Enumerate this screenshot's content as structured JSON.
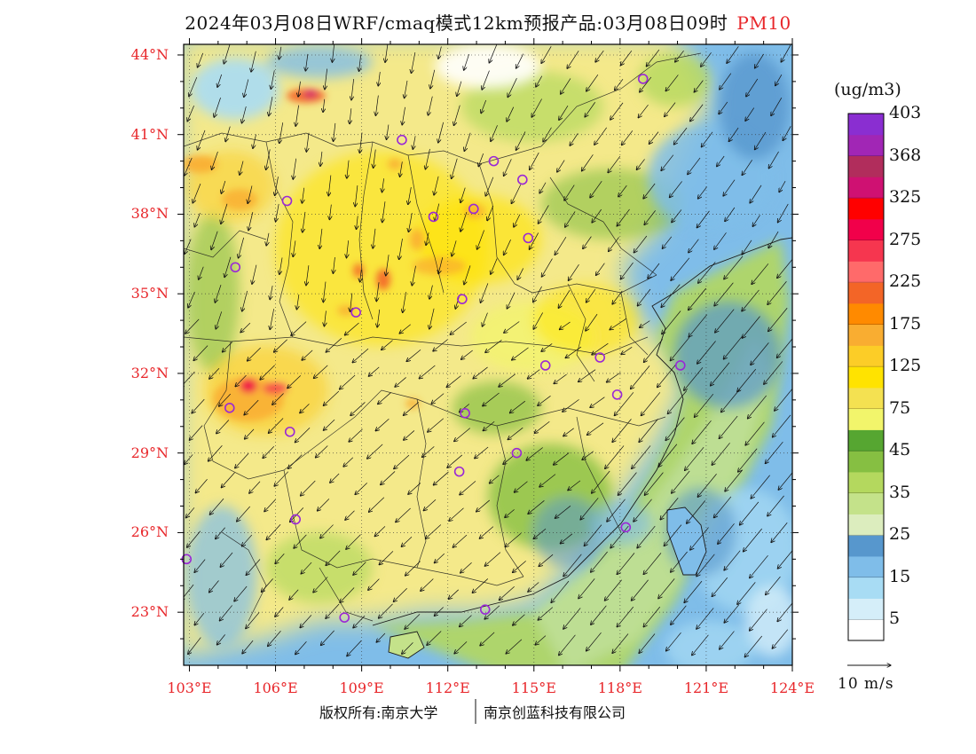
{
  "header": {
    "title": "2024年03月08日WRF/cmaq模式12km预报产品:03月08日09时",
    "pollutant": "PM10"
  },
  "map": {
    "lat_labels": [
      "44°N",
      "41°N",
      "38°N",
      "35°N",
      "32°N",
      "29°N",
      "26°N",
      "23°N"
    ],
    "lat_values": [
      44,
      41,
      38,
      35,
      32,
      29,
      26,
      23
    ],
    "lon_labels": [
      "103°E",
      "106°E",
      "109°E",
      "112°E",
      "115°E",
      "118°E",
      "121°E",
      "124°E"
    ],
    "lon_values": [
      103,
      106,
      109,
      112,
      115,
      118,
      121,
      124
    ],
    "lon_range": [
      102.8,
      124.0
    ],
    "lat_range": [
      21.0,
      44.4
    ],
    "city_markers": [
      [
        118.8,
        43.1
      ],
      [
        110.4,
        40.8
      ],
      [
        113.6,
        40.0
      ],
      [
        114.6,
        39.3
      ],
      [
        106.4,
        38.5
      ],
      [
        111.5,
        37.9
      ],
      [
        112.9,
        38.2
      ],
      [
        114.8,
        37.1
      ],
      [
        104.6,
        36.0
      ],
      [
        108.8,
        34.3
      ],
      [
        112.5,
        34.8
      ],
      [
        117.3,
        32.6
      ],
      [
        115.4,
        32.3
      ],
      [
        120.1,
        32.3
      ],
      [
        104.4,
        30.7
      ],
      [
        106.5,
        29.8
      ],
      [
        112.6,
        30.5
      ],
      [
        117.9,
        31.2
      ],
      [
        114.4,
        29.0
      ],
      [
        112.4,
        28.3
      ],
      [
        106.7,
        26.5
      ],
      [
        118.2,
        26.2
      ],
      [
        102.9,
        25.0
      ],
      [
        108.4,
        22.8
      ],
      [
        113.3,
        23.1
      ]
    ],
    "marker_color": "#9a27d6"
  },
  "colorbar": {
    "unit": "(ug/m3)",
    "colors": [
      "#ffffff",
      "#d5eef9",
      "#a8dcf4",
      "#7fbde9",
      "#5797cd",
      "#dcedbe",
      "#c4e28a",
      "#b4d85e",
      "#86bf42",
      "#56a631",
      "#f2f56b",
      "#f4e151",
      "#ffe300",
      "#fccd27",
      "#f9ad31",
      "#ff8a00",
      "#f36527",
      "#ff6a6a",
      "#f6364f",
      "#f1004a",
      "#ff0000",
      "#cf1172",
      "#b12d5c",
      "#a126b5",
      "#8a2ed1"
    ],
    "labels": [
      "5",
      "15",
      "25",
      "35",
      "45",
      "75",
      "125",
      "175",
      "225",
      "275",
      "325",
      "368",
      "403"
    ],
    "label_positions": [
      1,
      3,
      5,
      7,
      9,
      11,
      13,
      15,
      17,
      19,
      21,
      23,
      25
    ]
  },
  "wind_scale": {
    "label": "10 m/s"
  },
  "footer": {
    "left": "版权所有:南京大学",
    "right": "南京创蓝科技有限公司"
  }
}
